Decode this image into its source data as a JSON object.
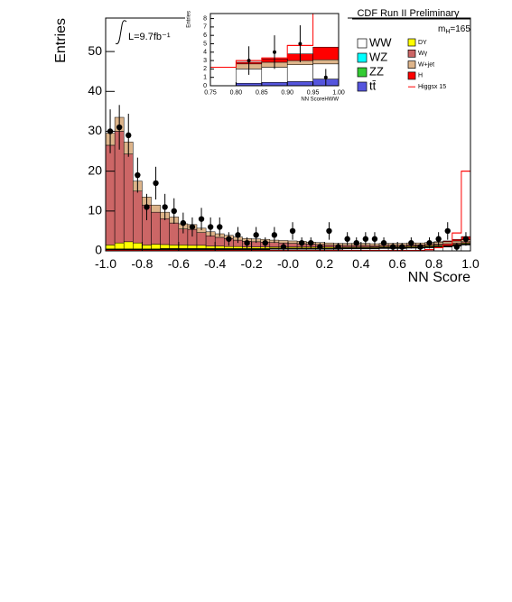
{
  "chart_data": [
    {
      "type": "histogram",
      "title": "CDF Run II Preliminary",
      "x_label": "NN Score",
      "y_label": "Entries",
      "lumi_label": "L=9.7fb⁻¹",
      "mass_symbol": "m",
      "mass_sub": "H",
      "mass_value": "=165",
      "bins": [
        -1,
        -0.95,
        -0.9,
        -0.85,
        -0.8,
        -0.75,
        -0.7,
        -0.65,
        -0.6,
        -0.55,
        -0.5,
        -0.45,
        -0.4,
        -0.35,
        -0.3,
        -0.25,
        -0.2,
        -0.15,
        -0.1,
        -0.05,
        0,
        0.05,
        0.1,
        0.15,
        0.2,
        0.25,
        0.3,
        0.35,
        0.4,
        0.45,
        0.5,
        0.55,
        0.6,
        0.65,
        0.7,
        0.75,
        0.8,
        0.85,
        0.9,
        0.95,
        1
      ],
      "xlim": [
        -1,
        1
      ],
      "xticks": [
        {
          "value": -1,
          "label": "-1.0"
        },
        -0.8,
        -0.6,
        -0.4,
        -0.2,
        {
          "value": 0,
          "label": "-0.0"
        },
        0.2,
        0.4,
        0.6,
        0.8,
        {
          "value": 1,
          "label": "1.0"
        }
      ],
      "ylim": [
        0,
        58.4
      ],
      "yticks": [
        0,
        10,
        20,
        30,
        40,
        50
      ],
      "series": [
        {
          "name": "WW",
          "color": "#ffffff",
          "values": [
            0.2,
            0.2,
            0.2,
            0.2,
            0.2,
            0.2,
            0.3,
            0.3,
            0.3,
            0.3,
            0.3,
            0.3,
            0.3,
            0.3,
            0.3,
            0.3,
            0.3,
            0.3,
            0.4,
            0.4,
            0.4,
            0.4,
            0.4,
            0.4,
            0.4,
            0.4,
            0.5,
            0.5,
            0.5,
            0.5,
            0.6,
            0.6,
            0.6,
            0.7,
            0.7,
            0.8,
            0.9,
            1.0,
            1.2,
            1.5
          ]
        },
        {
          "name": "WZ",
          "color": "#00ffff",
          "values": [
            0.1,
            0.1,
            0.1,
            0.1,
            0.1,
            0.1,
            0.1,
            0.1,
            0.1,
            0.1,
            0.1,
            0.1,
            0.1,
            0.1,
            0.1,
            0.1,
            0.1,
            0.1,
            0.1,
            0.1,
            0.1,
            0.1,
            0.1,
            0.1,
            0.1,
            0.1,
            0.1,
            0.1,
            0.1,
            0.1,
            0.1,
            0.1,
            0.1,
            0.1,
            0.1,
            0.1,
            0.1,
            0.1,
            0.1,
            0.1
          ]
        },
        {
          "name": "ZZ",
          "color": "#33cc33",
          "values": [
            0.1,
            0.1,
            0.1,
            0.1,
            0.1,
            0.1,
            0.1,
            0.1,
            0.1,
            0.1,
            0.1,
            0.1,
            0.1,
            0.1,
            0.1,
            0.1,
            0.1,
            0.1,
            0.1,
            0.1,
            0.1,
            0.1,
            0.1,
            0.1,
            0.1,
            0.1,
            0.1,
            0.1,
            0.1,
            0.1,
            0.1,
            0.1,
            0.1,
            0.1,
            0.1,
            0.1,
            0.1,
            0.1,
            0.1,
            0.1
          ]
        },
        {
          "name": "tt̄",
          "color": "#5555dd",
          "values": [
            0.1,
            0.1,
            0.1,
            0.1,
            0.1,
            0.1,
            0.1,
            0.1,
            0.1,
            0.1,
            0.1,
            0.1,
            0.1,
            0.1,
            0.1,
            0.1,
            0.1,
            0.1,
            0.1,
            0.1,
            0.1,
            0.1,
            0.1,
            0.1,
            0.1,
            0.1,
            0.1,
            0.1,
            0.1,
            0.1,
            0.1,
            0.1,
            0.1,
            0.1,
            0.1,
            0.1,
            0.1,
            0.1,
            0.1,
            0.1
          ]
        },
        {
          "name": "DY",
          "color": "#ffff00",
          "values": [
            1.0,
            1.5,
            1.8,
            1.5,
            1.0,
            1.2,
            1.0,
            0.9,
            0.9,
            0.8,
            0.8,
            0.6,
            0.6,
            0.5,
            0.5,
            0.4,
            0.4,
            0.4,
            0.3,
            0.3,
            0.3,
            0.3,
            0.3,
            0.3,
            0.3,
            0.2,
            0.2,
            0.2,
            0.2,
            0.2,
            0.2,
            0.2,
            0.2,
            0.2,
            0.2,
            0.2,
            0.2,
            0.2,
            0.2,
            0.2
          ]
        },
        {
          "name": "Wγ",
          "color": "#cc6666",
          "values": [
            25,
            28,
            22,
            13,
            10,
            8,
            6.5,
            5.5,
            4,
            4,
            3.2,
            2.6,
            2.2,
            2,
            1.6,
            1.4,
            1.3,
            1.2,
            1.1,
            1,
            0.9,
            0.8,
            0.7,
            0.6,
            0.5,
            0.5,
            0.4,
            0.4,
            0.4,
            0.3,
            0.3,
            0.3,
            0.3,
            0.3,
            0.3,
            0.3,
            0.3,
            0.3,
            0.3,
            0.3
          ]
        },
        {
          "name": "W+jet",
          "color": "#ddb48a",
          "values": [
            3,
            3.5,
            3,
            2.5,
            2,
            1.8,
            1.6,
            1.5,
            1.3,
            1.2,
            1.1,
            1,
            0.9,
            0.8,
            0.8,
            0.7,
            0.7,
            0.7,
            0.6,
            0.6,
            0.6,
            0.6,
            0.5,
            0.5,
            0.5,
            0.5,
            0.5,
            0.5,
            0.5,
            0.5,
            0.5,
            0.5,
            0.5,
            0.5,
            0.5,
            0.5,
            0.5,
            0.5,
            0.5,
            0.5
          ]
        },
        {
          "name": "H",
          "color": "#ff0000",
          "values": [
            0,
            0,
            0,
            0,
            0,
            0,
            0,
            0,
            0,
            0,
            0,
            0,
            0,
            0,
            0,
            0,
            0,
            0,
            0,
            0,
            0,
            0,
            0,
            0,
            0,
            0,
            0,
            0,
            0,
            0,
            0,
            0,
            0,
            0,
            0,
            0,
            0.1,
            0.2,
            0.4,
            0.8
          ]
        }
      ],
      "overlay": {
        "name": "Higgsx 15",
        "color": "#ff0000",
        "values": [
          0.1,
          0.1,
          0.1,
          0.1,
          0.1,
          0.1,
          0.1,
          0.1,
          0.1,
          0.1,
          0.1,
          0.1,
          0.1,
          0.1,
          0.1,
          0.1,
          0.1,
          0.1,
          0.1,
          0.1,
          0.1,
          0.1,
          0.1,
          0.1,
          0.1,
          0.1,
          0.1,
          0.1,
          0.1,
          0.1,
          0.1,
          0.1,
          0.1,
          0.1,
          0.1,
          0.3,
          0.8,
          1.5,
          4.5,
          20
        ]
      },
      "points": {
        "values": [
          30,
          31,
          29,
          19,
          11,
          17,
          11,
          10,
          7,
          6,
          8,
          6,
          6,
          3,
          4,
          2,
          4,
          2,
          4,
          1,
          5,
          2,
          2,
          1,
          5,
          1,
          3,
          2,
          3,
          3,
          2,
          1,
          1,
          2,
          1,
          2,
          3,
          5,
          1,
          3
        ],
        "errors": [
          5.5,
          5.6,
          5.4,
          4.4,
          3.3,
          4.1,
          3.3,
          3.2,
          2.6,
          2.4,
          2.8,
          2.4,
          2.4,
          1.7,
          2,
          1.4,
          2,
          1.4,
          2,
          1,
          2.2,
          1.4,
          1.4,
          1,
          2.2,
          1,
          1.7,
          1.4,
          1.7,
          1.7,
          1.4,
          1,
          1,
          1.4,
          1,
          1.4,
          1.7,
          2.2,
          1,
          1.7
        ]
      }
    },
    {
      "type": "histogram",
      "x_label": "NN ScoreHWW",
      "y_label": "Entries",
      "bins": [
        0.75,
        0.8,
        0.85,
        0.9,
        0.95,
        1
      ],
      "xlim": [
        0.75,
        1
      ],
      "xticks": [
        0.75,
        {
          "value": 0.8,
          "label": "0.80"
        },
        0.85,
        {
          "value": 0.9,
          "label": "0.90"
        },
        0.95,
        {
          "value": 1,
          "label": "1.00"
        }
      ],
      "ylim": [
        0,
        8.6
      ],
      "yticks": [
        0,
        1,
        2,
        3,
        4,
        5,
        6,
        7,
        8
      ],
      "series": [
        {
          "color": "#5555dd",
          "values": [
            0,
            0.3,
            0.4,
            0.5,
            0.8
          ]
        },
        {
          "color": "#ffffff",
          "values": [
            0,
            1.7,
            1.8,
            2,
            1.8
          ]
        },
        {
          "color": "#ddb48a",
          "values": [
            0,
            0.6,
            0.6,
            0.5,
            0.5
          ]
        },
        {
          "color": "#ff0000",
          "values": [
            0,
            0.2,
            0.4,
            0.8,
            1.5
          ]
        }
      ],
      "overlay": {
        "color": "#ff0000",
        "values": [
          2.2,
          3,
          3.3,
          4.8,
          8.6
        ]
      },
      "points": {
        "values": [
          0,
          3,
          4,
          5,
          1
        ],
        "errors": [
          0,
          1.7,
          2,
          2.2,
          1
        ]
      }
    }
  ]
}
